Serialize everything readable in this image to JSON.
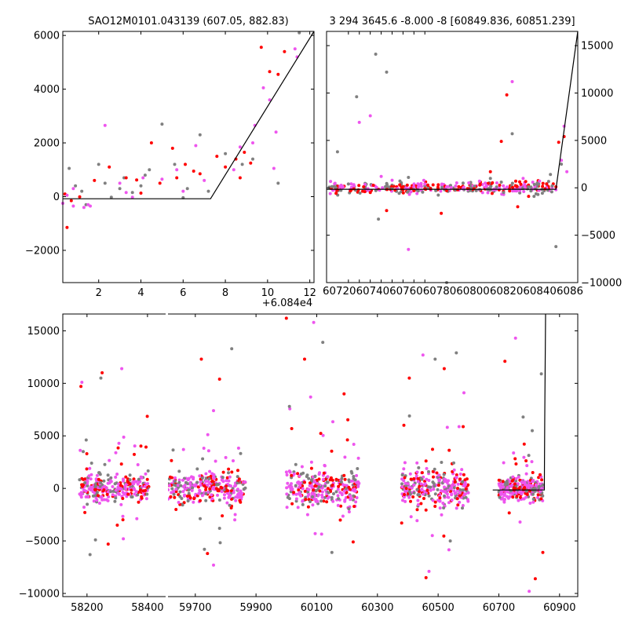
{
  "colors": {
    "gray": "#808080",
    "red": "#ff0000",
    "magenta": "#ee55ee",
    "model": "#000000"
  },
  "chart_data": [
    {
      "type": "scatter",
      "title": "SAO12M0101.043139 (607.05, 882.83)",
      "xlim": [
        0.3,
        12.2
      ],
      "ylim": [
        -3200,
        6150
      ],
      "xticks": [
        2,
        4,
        6,
        8,
        10,
        12
      ],
      "yticks": [
        -2000,
        0,
        2000,
        4000,
        6000
      ],
      "ytick_labels": [
        "−2000",
        "0",
        "2000",
        "4000",
        "6000"
      ],
      "yaxis_side": "left",
      "model_line": {
        "x": [
          0.3,
          7.3,
          12.2
        ],
        "y": [
          -80,
          -80,
          6150
        ]
      },
      "series": [
        {
          "color": "gray",
          "points": [
            [
              0.6,
              1050
            ],
            [
              1.2,
              200
            ],
            [
              1.4,
              -300
            ],
            [
              2.0,
              1200
            ],
            [
              2.6,
              -20
            ],
            [
              3.0,
              300
            ],
            [
              3.2,
              700
            ],
            [
              3.6,
              150
            ],
            [
              4.0,
              400
            ],
            [
              4.4,
              1000
            ],
            [
              5.0,
              2700
            ],
            [
              5.6,
              1200
            ],
            [
              6.2,
              300
            ],
            [
              6.8,
              2300
            ],
            [
              7.2,
              200
            ],
            [
              8.0,
              1600
            ],
            [
              8.8,
              1200
            ],
            [
              9.3,
              1400
            ],
            [
              10.5,
              500
            ],
            [
              11.5,
              6100
            ],
            [
              0.9,
              400
            ],
            [
              2.3,
              500
            ],
            [
              4.2,
              800
            ],
            [
              6.0,
              -40
            ]
          ]
        },
        {
          "color": "red",
          "points": [
            [
              0.5,
              -1150
            ],
            [
              0.7,
              -150
            ],
            [
              1.1,
              -10
            ],
            [
              1.8,
              600
            ],
            [
              2.5,
              1100
            ],
            [
              3.3,
              700
            ],
            [
              3.8,
              620
            ],
            [
              4.0,
              130
            ],
            [
              4.5,
              2000
            ],
            [
              4.9,
              500
            ],
            [
              5.5,
              1800
            ],
            [
              5.7,
              700
            ],
            [
              6.1,
              1200
            ],
            [
              6.5,
              950
            ],
            [
              6.8,
              850
            ],
            [
              7.6,
              1500
            ],
            [
              8.0,
              1100
            ],
            [
              8.5,
              1400
            ],
            [
              8.7,
              700
            ],
            [
              8.9,
              1650
            ],
            [
              9.2,
              1250
            ],
            [
              9.7,
              5560
            ],
            [
              10.1,
              4650
            ],
            [
              10.5,
              4550
            ],
            [
              10.8,
              5400
            ],
            [
              0.4,
              100
            ]
          ]
        },
        {
          "color": "magenta",
          "points": [
            [
              0.3,
              -250
            ],
            [
              0.5,
              50
            ],
            [
              0.8,
              300
            ],
            [
              1.3,
              -400
            ],
            [
              1.6,
              -350
            ],
            [
              2.3,
              2650
            ],
            [
              3.0,
              500
            ],
            [
              3.3,
              150
            ],
            [
              3.6,
              -20
            ],
            [
              4.1,
              700
            ],
            [
              5.0,
              650
            ],
            [
              5.7,
              1000
            ],
            [
              6.0,
              200
            ],
            [
              6.6,
              1900
            ],
            [
              7.0,
              600
            ],
            [
              8.4,
              1000
            ],
            [
              8.7,
              1850
            ],
            [
              9.3,
              2000
            ],
            [
              9.4,
              2650
            ],
            [
              9.8,
              4050
            ],
            [
              10.1,
              3600
            ],
            [
              10.3,
              1050
            ],
            [
              10.4,
              2400
            ],
            [
              11.3,
              5500
            ],
            [
              11.4,
              5200
            ],
            [
              0.8,
              -350
            ],
            [
              1.5,
              -300
            ]
          ]
        }
      ]
    },
    {
      "type": "scatter",
      "title": "3 294 3645.6 -8.000 -8 [60849.836, 60851.239]",
      "x_offset_label": "+6.084e4",
      "xlim": [
        6.8,
        11.4
      ],
      "ylim": [
        -10000,
        16500
      ],
      "xticks": [
        7.2,
        7.4,
        7.6,
        7.8,
        8.0,
        8.2,
        8.4,
        8.6
      ],
      "xtick_labels": [
        "6072",
        "6074",
        "6076",
        "6078",
        "6080",
        "6082",
        "6084",
        "6086"
      ],
      "xtick_label_full": "607206074060760607806080060820608406086",
      "yticks": [
        -10000,
        -5000,
        0,
        5000,
        10000,
        15000
      ],
      "ytick_labels": [
        "−10000",
        "−5000",
        "0",
        "5000",
        "10000",
        "15000"
      ],
      "yaxis_side": "right",
      "model_line": {
        "x": [
          6.8,
          11.0,
          11.4
        ],
        "y": [
          -150,
          -150,
          16500
        ]
      },
      "series": [
        {
          "color": "gray",
          "points": [
            [
              7.0,
              3800
            ],
            [
              7.35,
              9600
            ],
            [
              7.7,
              14100
            ],
            [
              7.75,
              -3300
            ],
            [
              7.9,
              12200
            ],
            [
              8.0,
              -100
            ],
            [
              8.3,
              1100
            ],
            [
              8.6,
              200
            ],
            [
              9.0,
              -10000
            ],
            [
              9.3,
              500
            ],
            [
              9.8,
              1000
            ],
            [
              10.2,
              5700
            ],
            [
              10.6,
              -900
            ],
            [
              10.9,
              1400
            ],
            [
              11.0,
              -6200
            ],
            [
              11.1,
              2500
            ],
            [
              7.2,
              400
            ],
            [
              8.8,
              -300
            ],
            [
              10.0,
              600
            ]
          ]
        },
        {
          "color": "red",
          "points": [
            [
              7.0,
              -200
            ],
            [
              7.3,
              -100
            ],
            [
              7.5,
              -400
            ],
            [
              7.9,
              -2400
            ],
            [
              8.2,
              -200
            ],
            [
              8.4,
              -300
            ],
            [
              8.6,
              -100
            ],
            [
              8.9,
              -2700
            ],
            [
              9.2,
              -200
            ],
            [
              9.5,
              -100
            ],
            [
              9.8,
              1700
            ],
            [
              10.0,
              4900
            ],
            [
              10.1,
              9800
            ],
            [
              10.3,
              -2000
            ],
            [
              10.5,
              -900
            ],
            [
              10.8,
              -100
            ],
            [
              11.05,
              4800
            ],
            [
              11.15,
              5400
            ],
            [
              7.6,
              -500
            ],
            [
              9.0,
              -300
            ]
          ]
        },
        {
          "color": "magenta",
          "points": [
            [
              7.1,
              100
            ],
            [
              7.3,
              200
            ],
            [
              7.4,
              6900
            ],
            [
              7.6,
              7600
            ],
            [
              7.8,
              1200
            ],
            [
              8.0,
              800
            ],
            [
              8.3,
              -6500
            ],
            [
              8.6,
              400
            ],
            [
              9.0,
              100
            ],
            [
              9.3,
              -100
            ],
            [
              9.6,
              700
            ],
            [
              9.9,
              -200
            ],
            [
              10.2,
              11200
            ],
            [
              10.4,
              1000
            ],
            [
              10.7,
              700
            ],
            [
              11.0,
              -200
            ],
            [
              11.1,
              2900
            ],
            [
              11.15,
              6500
            ],
            [
              11.2,
              1700
            ],
            [
              8.5,
              300
            ]
          ]
        }
      ]
    },
    {
      "type": "scatter",
      "title": "",
      "broken_x_axis": true,
      "panels": [
        {
          "xlim": [
            58120,
            58460
          ],
          "xticks": [
            58200,
            58400
          ]
        },
        {
          "xlim": [
            59610,
            60960
          ],
          "xticks": [
            59700,
            59900,
            60100,
            60300,
            60500,
            60700,
            60900
          ]
        }
      ],
      "ylim": [
        -10300,
        16600
      ],
      "yticks": [
        -10000,
        -5000,
        0,
        5000,
        10000,
        15000
      ],
      "ytick_labels": [
        "−10000",
        "−5000",
        "0",
        "5000",
        "10000",
        "15000"
      ],
      "model_line": {
        "x": [
          60680,
          60849.836,
          60851.239,
          60854
        ],
        "y": [
          -150,
          -150,
          6200,
          16600
        ]
      },
      "clusters": [
        {
          "panel": 0,
          "x": [
            58175,
            58405
          ],
          "core_sd": 600,
          "outliers": [
            [
              58180,
              9700
            ],
            [
              58183,
              10100
            ],
            [
              58246,
              10500
            ],
            [
              58250,
              11000
            ],
            [
              58315,
              11400
            ],
            [
              58228,
              -4900
            ],
            [
              58270,
              -5300
            ],
            [
              58320,
              -4800
            ],
            [
              58210,
              -6300
            ],
            [
              58300,
              -3500
            ]
          ]
        },
        {
          "panel": 1,
          "x": [
            59610,
            59865
          ],
          "core_sd": 700,
          "outliers": [
            [
              59720,
              12300
            ],
            [
              59760,
              7400
            ],
            [
              59820,
              13300
            ],
            [
              59780,
              10400
            ],
            [
              59760,
              -7300
            ],
            [
              59730,
              -5800
            ],
            [
              59740,
              -6200
            ],
            [
              59830,
              -3000
            ],
            [
              59780,
              -3800
            ]
          ]
        },
        {
          "panel": 1,
          "x": [
            60000,
            60240
          ],
          "core_sd": 800,
          "outliers": [
            [
              60000,
              16200
            ],
            [
              60090,
              15800
            ],
            [
              60120,
              13900
            ],
            [
              60060,
              12300
            ],
            [
              60080,
              8700
            ],
            [
              60010,
              7800
            ],
            [
              60190,
              9000
            ],
            [
              60095,
              -4300
            ],
            [
              60150,
              -6100
            ],
            [
              60220,
              -5100
            ],
            [
              60070,
              -2500
            ]
          ]
        },
        {
          "panel": 1,
          "x": [
            60380,
            60600
          ],
          "core_sd": 800,
          "outliers": [
            [
              60405,
              10500
            ],
            [
              60450,
              12700
            ],
            [
              60490,
              12300
            ],
            [
              60520,
              11400
            ],
            [
              60585,
              9100
            ],
            [
              60560,
              12900
            ],
            [
              60460,
              -8500
            ],
            [
              60470,
              -7900
            ],
            [
              60540,
              -5000
            ],
            [
              60380,
              -3300
            ]
          ]
        },
        {
          "panel": 1,
          "x": [
            60700,
            60845
          ],
          "core_sd": 450,
          "outliers": [
            [
              60720,
              12100
            ],
            [
              60755,
              14300
            ],
            [
              60780,
              6800
            ],
            [
              60820,
              -8600
            ],
            [
              60800,
              -9800
            ],
            [
              60840,
              10900
            ],
            [
              60845,
              -6100
            ],
            [
              60770,
              -3200
            ],
            [
              60810,
              5500
            ]
          ]
        }
      ]
    }
  ]
}
